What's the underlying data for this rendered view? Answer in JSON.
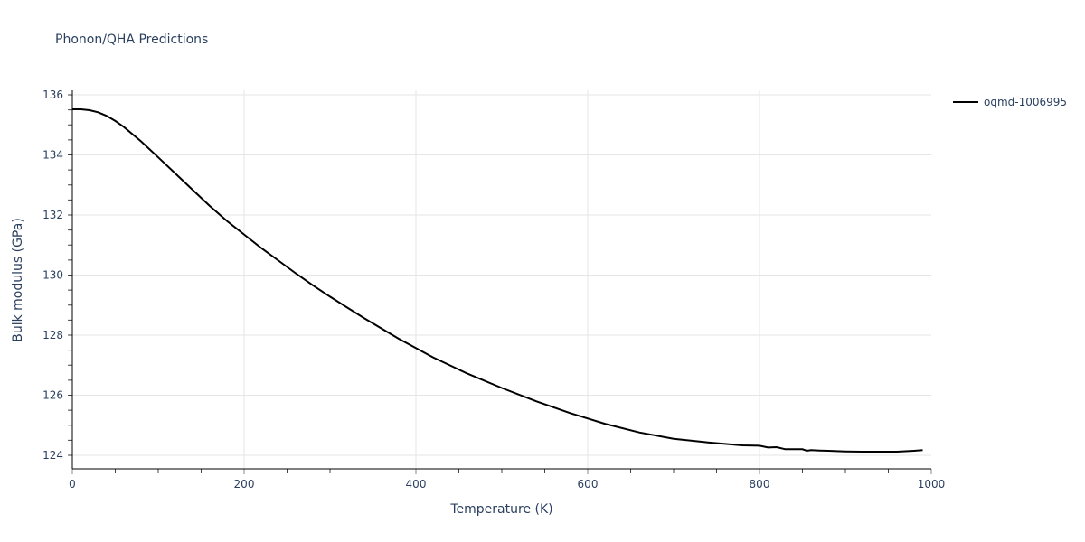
{
  "title": "Phonon/QHA Predictions",
  "legend": {
    "entries": [
      {
        "label": "oqmd-1006995",
        "color": "#000000"
      }
    ]
  },
  "xaxis": {
    "title": "Temperature (K)",
    "ticks": [
      "0",
      "200",
      "400",
      "600",
      "800",
      "1000"
    ]
  },
  "yaxis": {
    "title": "Bulk modulus (GPa)",
    "ticks": [
      "124",
      "126",
      "128",
      "130",
      "132",
      "134",
      "136"
    ]
  },
  "chart_data": {
    "type": "line",
    "title": "Phonon/QHA Predictions",
    "xlabel": "Temperature (K)",
    "ylabel": "Bulk modulus (GPa)",
    "xlim": [
      0,
      1000
    ],
    "ylim": [
      123.55,
      136.1
    ],
    "grid": true,
    "legend_position": "right",
    "series": [
      {
        "name": "oqmd-1006995",
        "color": "#000000",
        "x": [
          0,
          10,
          20,
          30,
          40,
          50,
          60,
          80,
          100,
          120,
          140,
          160,
          180,
          200,
          220,
          240,
          260,
          280,
          300,
          340,
          380,
          420,
          460,
          500,
          540,
          580,
          620,
          660,
          700,
          740,
          780,
          800,
          810,
          820,
          830,
          840,
          850,
          855,
          860,
          870,
          880,
          900,
          920,
          940,
          960,
          980,
          990
        ],
        "values": [
          135.52,
          135.52,
          135.49,
          135.42,
          135.3,
          135.13,
          134.93,
          134.45,
          133.92,
          133.38,
          132.84,
          132.3,
          131.8,
          131.35,
          130.9,
          130.48,
          130.06,
          129.66,
          129.28,
          128.56,
          127.88,
          127.26,
          126.72,
          126.24,
          125.8,
          125.4,
          125.05,
          124.76,
          124.55,
          124.43,
          124.33,
          124.32,
          124.26,
          124.27,
          124.2,
          124.2,
          124.2,
          124.15,
          124.17,
          124.16,
          124.15,
          124.13,
          124.12,
          124.12,
          124.12,
          124.15,
          124.17
        ]
      }
    ]
  }
}
